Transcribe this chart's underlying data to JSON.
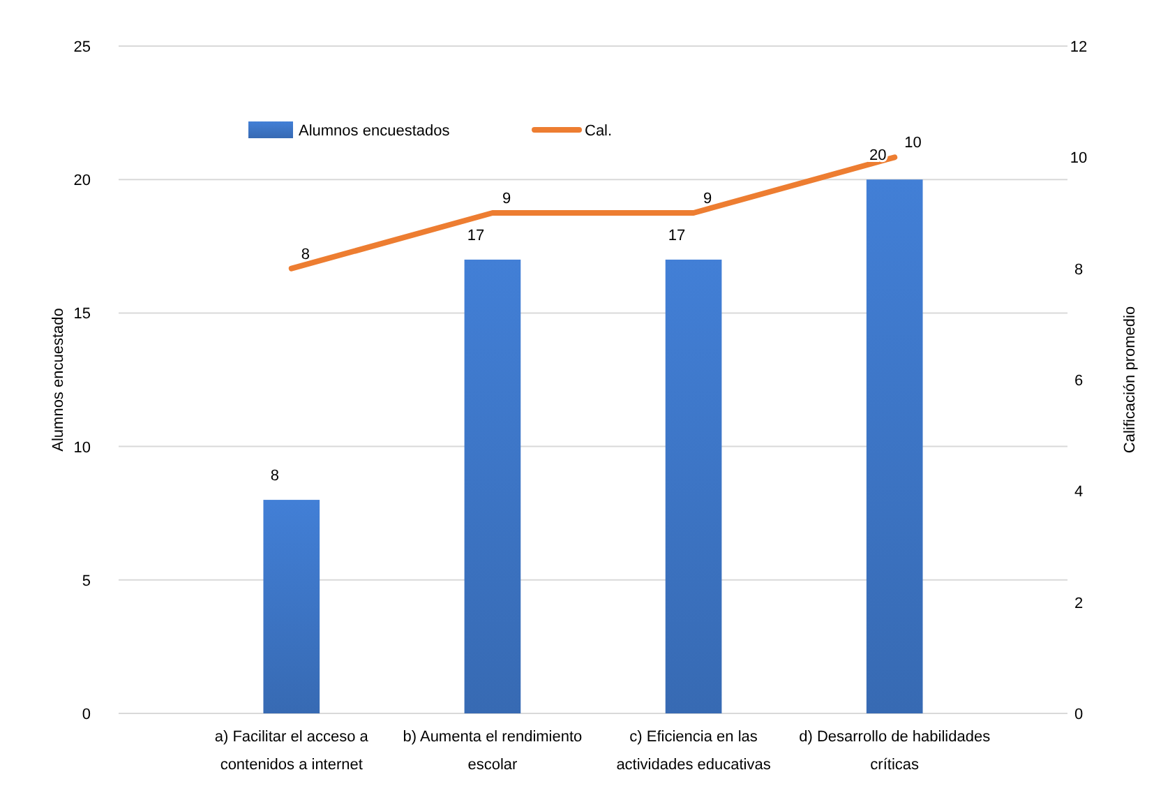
{
  "chart_data": {
    "type": "bar",
    "categories": [
      "a) Facilitar el acceso a contenidos a internet",
      "b) Aumenta el rendimiento escolar",
      "c) Eficiencia en las actividades educativas",
      "d) Desarrollo de habilidades críticas"
    ],
    "series": [
      {
        "name": "Alumnos encuestados",
        "color": "#3a70bd",
        "values": [
          8,
          17,
          17,
          20
        ]
      },
      {
        "name": "Cal.",
        "type": "line",
        "axis": "y2",
        "color": "#ed7d31",
        "values": [
          8,
          9,
          9,
          10
        ]
      }
    ],
    "ylabel": "Alumnos encuestado",
    "y2label": "Calificación promedio",
    "ylim": [
      0,
      25
    ],
    "yticks": [
      0,
      5,
      10,
      15,
      20,
      25
    ],
    "y2lim": [
      0,
      12
    ],
    "y2ticks": [
      0,
      2,
      4,
      6,
      8,
      10,
      12
    ],
    "grid": "y",
    "legend": "top left",
    "data_labels": true,
    "marker": "none"
  }
}
